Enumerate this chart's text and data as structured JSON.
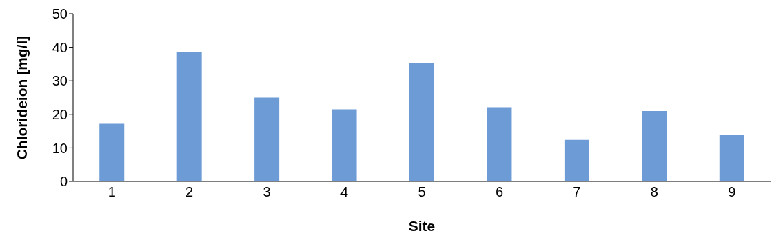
{
  "chart_data": {
    "type": "bar",
    "xlabel": "Site",
    "ylabel": "Chlorideion [mg/l]",
    "categories": [
      "1",
      "2",
      "3",
      "4",
      "5",
      "6",
      "7",
      "8",
      "9"
    ],
    "values": [
      17.2,
      38.7,
      25.0,
      21.5,
      35.2,
      22.1,
      12.4,
      21.0,
      13.9
    ],
    "color": "#6d9bd6",
    "ylim": [
      0,
      50
    ],
    "yticks": [
      0,
      10,
      20,
      30,
      40,
      50
    ],
    "grid": false,
    "legend": false
  }
}
